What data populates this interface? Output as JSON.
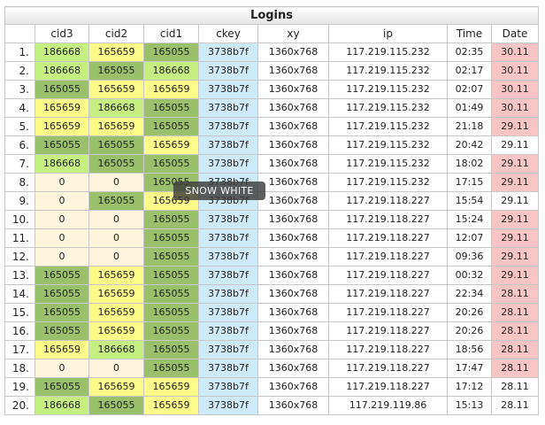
{
  "title": "Logins",
  "columns": [
    "",
    "cid3",
    "cid2",
    "cid1",
    "ckey",
    "xy",
    "ip",
    "Time",
    "Date"
  ],
  "colors": {
    "dark_green": "#9ac06c",
    "light_green": "#c6ef82",
    "yellow": "#fbfb8a",
    "cream": "#fff5dc",
    "blue": "#cdeaf8",
    "pink": "#f8c4c4",
    "white": "#ffffff"
  },
  "tooltip": "SNOW WHITE",
  "rows": [
    {
      "n": "1.",
      "cid3": "186668",
      "cid3_c": "light_green",
      "cid2": "165659",
      "cid2_c": "yellow",
      "cid1": "165055",
      "cid1_c": "dark_green",
      "ckey": "3738b7f",
      "xy": "1360x768",
      "ip": "117.219.115.232",
      "time": "02:35",
      "date": "30.11",
      "date_c": "pink"
    },
    {
      "n": "2.",
      "cid3": "186668",
      "cid3_c": "light_green",
      "cid2": "165055",
      "cid2_c": "dark_green",
      "cid1": "186668",
      "cid1_c": "light_green",
      "ckey": "3738b7f",
      "xy": "1360x768",
      "ip": "117.219.115.232",
      "time": "02:17",
      "date": "30.11",
      "date_c": "pink"
    },
    {
      "n": "3.",
      "cid3": "165055",
      "cid3_c": "dark_green",
      "cid2": "165659",
      "cid2_c": "yellow",
      "cid1": "165659",
      "cid1_c": "yellow",
      "ckey": "3738b7f",
      "xy": "1360x768",
      "ip": "117.219.115.232",
      "time": "02:07",
      "date": "30.11",
      "date_c": "pink"
    },
    {
      "n": "4.",
      "cid3": "165659",
      "cid3_c": "yellow",
      "cid2": "186668",
      "cid2_c": "light_green",
      "cid1": "165055",
      "cid1_c": "dark_green",
      "ckey": "3738b7f",
      "xy": "1360x768",
      "ip": "117.219.115.232",
      "time": "01:49",
      "date": "30.11",
      "date_c": "pink"
    },
    {
      "n": "5.",
      "cid3": "165659",
      "cid3_c": "yellow",
      "cid2": "165659",
      "cid2_c": "yellow",
      "cid1": "165055",
      "cid1_c": "dark_green",
      "ckey": "3738b7f",
      "xy": "1360x768",
      "ip": "117.219.115.232",
      "time": "21:18",
      "date": "29.11",
      "date_c": "pink"
    },
    {
      "n": "6.",
      "cid3": "165055",
      "cid3_c": "dark_green",
      "cid2": "165055",
      "cid2_c": "dark_green",
      "cid1": "165659",
      "cid1_c": "yellow",
      "ckey": "3738b7f",
      "xy": "1360x768",
      "ip": "117.219.115.232",
      "time": "20:42",
      "date": "29.11",
      "date_c": "white"
    },
    {
      "n": "7.",
      "cid3": "186668",
      "cid3_c": "light_green",
      "cid2": "165055",
      "cid2_c": "dark_green",
      "cid1": "165055",
      "cid1_c": "dark_green",
      "ckey": "3738b7f",
      "xy": "1360x768",
      "ip": "117.219.115.232",
      "time": "18:02",
      "date": "29.11",
      "date_c": "pink"
    },
    {
      "n": "8.",
      "cid3": "0",
      "cid3_c": "cream",
      "cid2": "0",
      "cid2_c": "cream",
      "cid1": "165055",
      "cid1_c": "dark_green",
      "ckey": "3738b7f",
      "xy": "1360x768",
      "ip": "117.219.115.232",
      "time": "17:15",
      "date": "29.11",
      "date_c": "pink"
    },
    {
      "n": "9.",
      "cid3": "0",
      "cid3_c": "cream",
      "cid2": "165055",
      "cid2_c": "dark_green",
      "cid1": "165659",
      "cid1_c": "yellow",
      "ckey": "3738b7f",
      "xy": "1360x768",
      "ip": "117.219.118.227",
      "time": "15:54",
      "date": "29.11",
      "date_c": "white"
    },
    {
      "n": "10.",
      "cid3": "0",
      "cid3_c": "cream",
      "cid2": "0",
      "cid2_c": "cream",
      "cid1": "165055",
      "cid1_c": "dark_green",
      "ckey": "3738b7f",
      "xy": "1360x768",
      "ip": "117.219.118.227",
      "time": "15:24",
      "date": "29.11",
      "date_c": "pink"
    },
    {
      "n": "11.",
      "cid3": "0",
      "cid3_c": "cream",
      "cid2": "0",
      "cid2_c": "cream",
      "cid1": "165055",
      "cid1_c": "dark_green",
      "ckey": "3738b7f",
      "xy": "1360x768",
      "ip": "117.219.118.227",
      "time": "12:07",
      "date": "29.11",
      "date_c": "pink"
    },
    {
      "n": "12.",
      "cid3": "0",
      "cid3_c": "cream",
      "cid2": "0",
      "cid2_c": "cream",
      "cid1": "165055",
      "cid1_c": "dark_green",
      "ckey": "3738b7f",
      "xy": "1360x768",
      "ip": "117.219.118.227",
      "time": "09:36",
      "date": "29.11",
      "date_c": "pink"
    },
    {
      "n": "13.",
      "cid3": "165055",
      "cid3_c": "dark_green",
      "cid2": "165659",
      "cid2_c": "yellow",
      "cid1": "165055",
      "cid1_c": "dark_green",
      "ckey": "3738b7f",
      "xy": "1360x768",
      "ip": "117.219.118.227",
      "time": "00:32",
      "date": "29.11",
      "date_c": "pink"
    },
    {
      "n": "14.",
      "cid3": "165055",
      "cid3_c": "dark_green",
      "cid2": "165659",
      "cid2_c": "yellow",
      "cid1": "165055",
      "cid1_c": "dark_green",
      "ckey": "3738b7f",
      "xy": "1360x768",
      "ip": "117.219.118.227",
      "time": "22:34",
      "date": "28.11",
      "date_c": "pink"
    },
    {
      "n": "15.",
      "cid3": "165055",
      "cid3_c": "dark_green",
      "cid2": "165659",
      "cid2_c": "yellow",
      "cid1": "165055",
      "cid1_c": "dark_green",
      "ckey": "3738b7f",
      "xy": "1360x768",
      "ip": "117.219.118.227",
      "time": "20:26",
      "date": "28.11",
      "date_c": "pink"
    },
    {
      "n": "16.",
      "cid3": "165055",
      "cid3_c": "dark_green",
      "cid2": "165659",
      "cid2_c": "yellow",
      "cid1": "165055",
      "cid1_c": "dark_green",
      "ckey": "3738b7f",
      "xy": "1360x768",
      "ip": "117.219.118.227",
      "time": "20:26",
      "date": "28.11",
      "date_c": "pink"
    },
    {
      "n": "17.",
      "cid3": "165659",
      "cid3_c": "yellow",
      "cid2": "186668",
      "cid2_c": "light_green",
      "cid1": "165055",
      "cid1_c": "dark_green",
      "ckey": "3738b7f",
      "xy": "1360x768",
      "ip": "117.219.118.227",
      "time": "18:56",
      "date": "28.11",
      "date_c": "pink"
    },
    {
      "n": "18.",
      "cid3": "0",
      "cid3_c": "cream",
      "cid2": "0",
      "cid2_c": "cream",
      "cid1": "165055",
      "cid1_c": "dark_green",
      "ckey": "3738b7f",
      "xy": "1360x768",
      "ip": "117.219.118.227",
      "time": "17:47",
      "date": "28.11",
      "date_c": "pink"
    },
    {
      "n": "19.",
      "cid3": "165055",
      "cid3_c": "dark_green",
      "cid2": "165659",
      "cid2_c": "yellow",
      "cid1": "165659",
      "cid1_c": "yellow",
      "ckey": "3738b7f",
      "xy": "1360x768",
      "ip": "117.219.118.227",
      "time": "17:12",
      "date": "28.11",
      "date_c": "white"
    },
    {
      "n": "20.",
      "cid3": "186668",
      "cid3_c": "light_green",
      "cid2": "165055",
      "cid2_c": "dark_green",
      "cid1": "165659",
      "cid1_c": "yellow",
      "ckey": "3738b7f",
      "xy": "1360x768",
      "ip": "117.219.119.86",
      "time": "15:13",
      "date": "28.11",
      "date_c": "white"
    }
  ]
}
